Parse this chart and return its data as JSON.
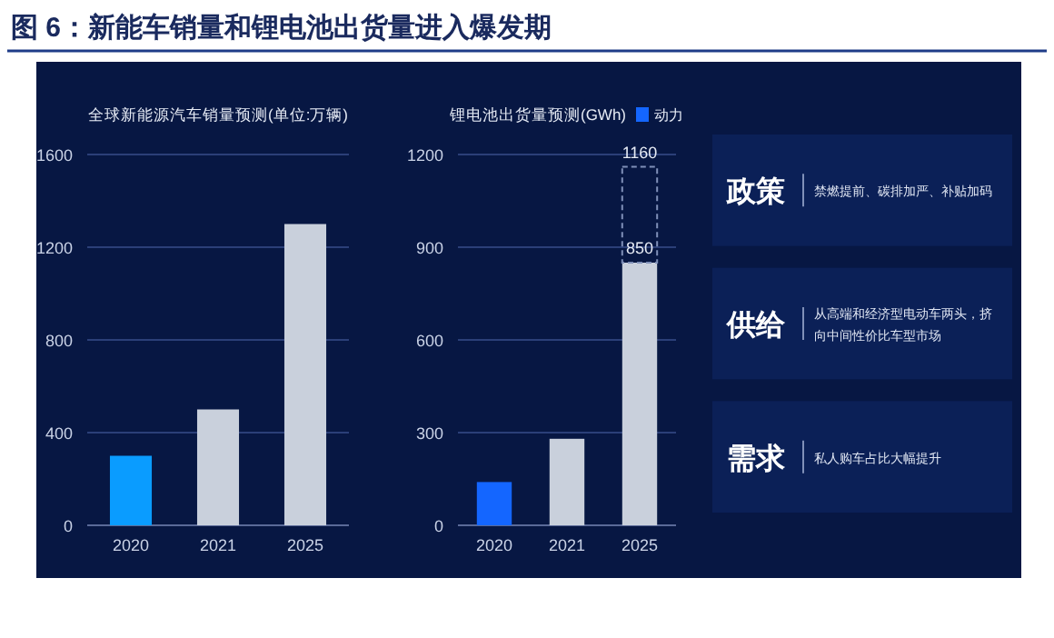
{
  "chart_data": [
    {
      "type": "bar",
      "title": "图 6：新能车销量和锂电池出货量进入爆发期",
      "subtitle": "全球新能源汽车销量预测(单位:万辆)",
      "categories": [
        "2020",
        "2021",
        "2025"
      ],
      "series": [
        {
          "colors": [
            "#0a9cff",
            "#c9d0dc",
            "#c9d0dc"
          ],
          "values": [
            300,
            500,
            1300
          ]
        }
      ],
      "ylim": [
        0,
        1600
      ],
      "yticks": [
        0,
        400,
        800,
        1200,
        1600
      ],
      "grid": "y"
    },
    {
      "type": "bar",
      "title": "锂电池出货量预测(GWh)",
      "categories": [
        "2020",
        "2021",
        "2025"
      ],
      "stacked": true,
      "series": [
        {
          "name": "动力",
          "color": "#1466ff",
          "colors": [
            "#1466ff",
            "#c9d0dc",
            "#c9d0dc"
          ],
          "values": [
            140,
            280,
            850
          ]
        },
        {
          "color": "#7f8fb8",
          "line_style": "dashed",
          "values": [
            null,
            null,
            310
          ]
        }
      ],
      "annotations": [
        {
          "text": "850",
          "x": "2025",
          "y": 850
        },
        {
          "text": "1160",
          "x": "2025",
          "y": 1160
        }
      ],
      "ylim": [
        0,
        1200
      ],
      "yticks": [
        0,
        300,
        600,
        900,
        1200
      ],
      "grid": "y",
      "legend": "top right"
    },
    {
      "type": "other",
      "annotations": [
        "政策",
        "禁燃提前、碳排加严、补贴加码",
        "供给",
        "从高端和经济型电动车两头，挤向中间性价比车型市场",
        "需求",
        "私人购车占比大幅提升"
      ]
    }
  ]
}
